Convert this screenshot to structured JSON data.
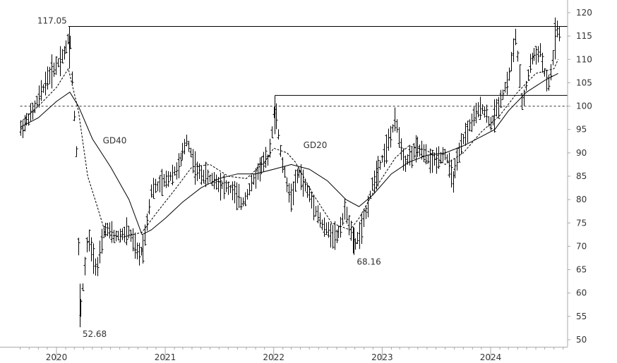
{
  "chart_data": {
    "type": "ohlc",
    "title": "",
    "xlabel": "",
    "ylabel": "",
    "ylim": [
      48,
      121
    ],
    "x_range": [
      "2019-09-01",
      "2024-12-31"
    ],
    "y_axis_position": "right",
    "y_ticks": [
      50,
      55,
      60,
      65,
      70,
      75,
      80,
      85,
      90,
      95,
      100,
      105,
      110,
      115,
      120
    ],
    "x_ticks": [
      {
        "label": "2020",
        "date": "2020-01-01"
      },
      {
        "label": "2021",
        "date": "2021-01-01"
      },
      {
        "label": "2022",
        "date": "2022-01-01"
      },
      {
        "label": "2023",
        "date": "2023-01-01"
      },
      {
        "label": "2024",
        "date": "2024-01-01"
      }
    ],
    "colors": {
      "price": "#000000",
      "grid": "#888888",
      "axis": "#aaaaaa"
    },
    "horizontal_lines": [
      {
        "value": 117.05,
        "style": "solid",
        "from": "2020-02-10"
      },
      {
        "value": 102.3,
        "style": "solid",
        "from": "2022-01-05"
      },
      {
        "value": 100,
        "style": "dotted",
        "from": "2019-09-01"
      }
    ],
    "annotations": [
      {
        "text": "117.05",
        "date": "2020-02-10",
        "value": 117.05,
        "anchor": "left-above"
      },
      {
        "text": "52.68",
        "date": "2020-03-19",
        "value": 52.68,
        "anchor": "right-below"
      },
      {
        "text": "68.16",
        "date": "2022-09-28",
        "value": 68.16,
        "anchor": "right-below"
      },
      {
        "text": "GD40",
        "date": "2020-07-15",
        "value": 92,
        "anchor": "center"
      },
      {
        "text": "GD20",
        "date": "2022-04-01",
        "value": 91,
        "anchor": "left"
      }
    ],
    "series": [
      {
        "name": "GD40",
        "style": "solid",
        "points": [
          [
            "2019-09-01",
            95.5
          ],
          [
            "2019-11-01",
            97.5
          ],
          [
            "2020-01-01",
            101
          ],
          [
            "2020-02-15",
            103
          ],
          [
            "2020-03-15",
            100
          ],
          [
            "2020-05-01",
            93
          ],
          [
            "2020-07-01",
            87
          ],
          [
            "2020-09-01",
            80
          ],
          [
            "2020-10-15",
            72.5
          ],
          [
            "2020-11-15",
            73.5
          ],
          [
            "2021-01-01",
            76
          ],
          [
            "2021-03-01",
            79.5
          ],
          [
            "2021-05-01",
            82.5
          ],
          [
            "2021-07-01",
            84.5
          ],
          [
            "2021-09-01",
            85.5
          ],
          [
            "2021-11-01",
            85.5
          ],
          [
            "2022-01-01",
            86.5
          ],
          [
            "2022-03-01",
            87.5
          ],
          [
            "2022-05-01",
            86.5
          ],
          [
            "2022-07-01",
            84
          ],
          [
            "2022-09-01",
            80
          ],
          [
            "2022-10-15",
            78.5
          ],
          [
            "2022-12-01",
            81
          ],
          [
            "2023-02-01",
            85.5
          ],
          [
            "2023-04-01",
            88
          ],
          [
            "2023-06-01",
            89.5
          ],
          [
            "2023-08-01",
            90
          ],
          [
            "2023-10-01",
            91.5
          ],
          [
            "2023-12-01",
            93.5
          ],
          [
            "2024-01-15",
            95
          ],
          [
            "2024-03-01",
            99
          ],
          [
            "2024-05-01",
            103
          ],
          [
            "2024-07-01",
            105.5
          ],
          [
            "2024-08-15",
            107
          ]
        ]
      },
      {
        "name": "GD20",
        "style": "dashed",
        "points": [
          [
            "2019-09-01",
            96.5
          ],
          [
            "2019-11-01",
            100
          ],
          [
            "2020-01-01",
            104
          ],
          [
            "2020-02-10",
            108
          ],
          [
            "2020-03-15",
            99
          ],
          [
            "2020-04-15",
            85
          ],
          [
            "2020-05-15",
            79
          ],
          [
            "2020-06-15",
            72.5
          ],
          [
            "2020-08-15",
            72
          ],
          [
            "2020-10-15",
            73
          ],
          [
            "2020-12-01",
            77
          ],
          [
            "2021-02-01",
            82
          ],
          [
            "2021-04-01",
            87
          ],
          [
            "2021-06-01",
            87.5
          ],
          [
            "2021-08-01",
            85
          ],
          [
            "2021-10-01",
            84.5
          ],
          [
            "2021-12-01",
            88
          ],
          [
            "2022-01-01",
            91
          ],
          [
            "2022-02-15",
            90
          ],
          [
            "2022-03-15",
            88
          ],
          [
            "2022-05-15",
            81
          ],
          [
            "2022-07-15",
            75
          ],
          [
            "2022-09-15",
            73.5
          ],
          [
            "2022-10-15",
            76
          ],
          [
            "2022-12-15",
            83
          ],
          [
            "2023-02-15",
            89
          ],
          [
            "2023-04-01",
            91.5
          ],
          [
            "2023-06-01",
            90.5
          ],
          [
            "2023-08-01",
            87.5
          ],
          [
            "2023-10-01",
            90
          ],
          [
            "2023-12-01",
            94.5
          ],
          [
            "2024-02-01",
            98
          ],
          [
            "2024-04-01",
            103
          ],
          [
            "2024-06-01",
            107
          ],
          [
            "2024-08-01",
            108
          ],
          [
            "2024-08-15",
            110
          ]
        ]
      }
    ],
    "price_anchors": [
      [
        "2019-09-01",
        95
      ],
      [
        "2019-10-15",
        99
      ],
      [
        "2019-12-01",
        106
      ],
      [
        "2020-01-01",
        109
      ],
      [
        "2020-02-01",
        112
      ],
      [
        "2020-02-14",
        116
      ],
      [
        "2020-02-24",
        105
      ],
      [
        "2020-03-10",
        88
      ],
      [
        "2020-03-19",
        55
      ],
      [
        "2020-04-15",
        72
      ],
      [
        "2020-05-15",
        65
      ],
      [
        "2020-06-10",
        74
      ],
      [
        "2020-07-15",
        72
      ],
      [
        "2020-09-01",
        73
      ],
      [
        "2020-10-01",
        68
      ],
      [
        "2020-10-20",
        70
      ],
      [
        "2020-11-15",
        82
      ],
      [
        "2021-01-01",
        84
      ],
      [
        "2021-02-15",
        87
      ],
      [
        "2021-03-15",
        93
      ],
      [
        "2021-04-15",
        86
      ],
      [
        "2021-06-15",
        84
      ],
      [
        "2021-08-15",
        82
      ],
      [
        "2021-09-15",
        79
      ],
      [
        "2021-11-15",
        87
      ],
      [
        "2021-12-15",
        89
      ],
      [
        "2022-01-05",
        100
      ],
      [
        "2022-01-25",
        89
      ],
      [
        "2022-02-25",
        80
      ],
      [
        "2022-03-25",
        86
      ],
      [
        "2022-05-15",
        79
      ],
      [
        "2022-06-15",
        74
      ],
      [
        "2022-08-01",
        72
      ],
      [
        "2022-09-01",
        78
      ],
      [
        "2022-09-28",
        70
      ],
      [
        "2022-10-25",
        74
      ],
      [
        "2022-12-01",
        84
      ],
      [
        "2023-01-15",
        91
      ],
      [
        "2023-02-15",
        97
      ],
      [
        "2023-03-15",
        88
      ],
      [
        "2023-05-01",
        91
      ],
      [
        "2023-06-15",
        88
      ],
      [
        "2023-08-01",
        90
      ],
      [
        "2023-08-25",
        84
      ],
      [
        "2023-10-01",
        93
      ],
      [
        "2023-11-01",
        97
      ],
      [
        "2023-12-01",
        100
      ],
      [
        "2024-01-01",
        96
      ],
      [
        "2024-02-01",
        101
      ],
      [
        "2024-03-01",
        106
      ],
      [
        "2024-03-25",
        115
      ],
      [
        "2024-04-15",
        100
      ],
      [
        "2024-05-15",
        110
      ],
      [
        "2024-06-15",
        112
      ],
      [
        "2024-07-10",
        104
      ],
      [
        "2024-07-25",
        108
      ],
      [
        "2024-08-05",
        117
      ],
      [
        "2024-08-20",
        115
      ]
    ]
  }
}
